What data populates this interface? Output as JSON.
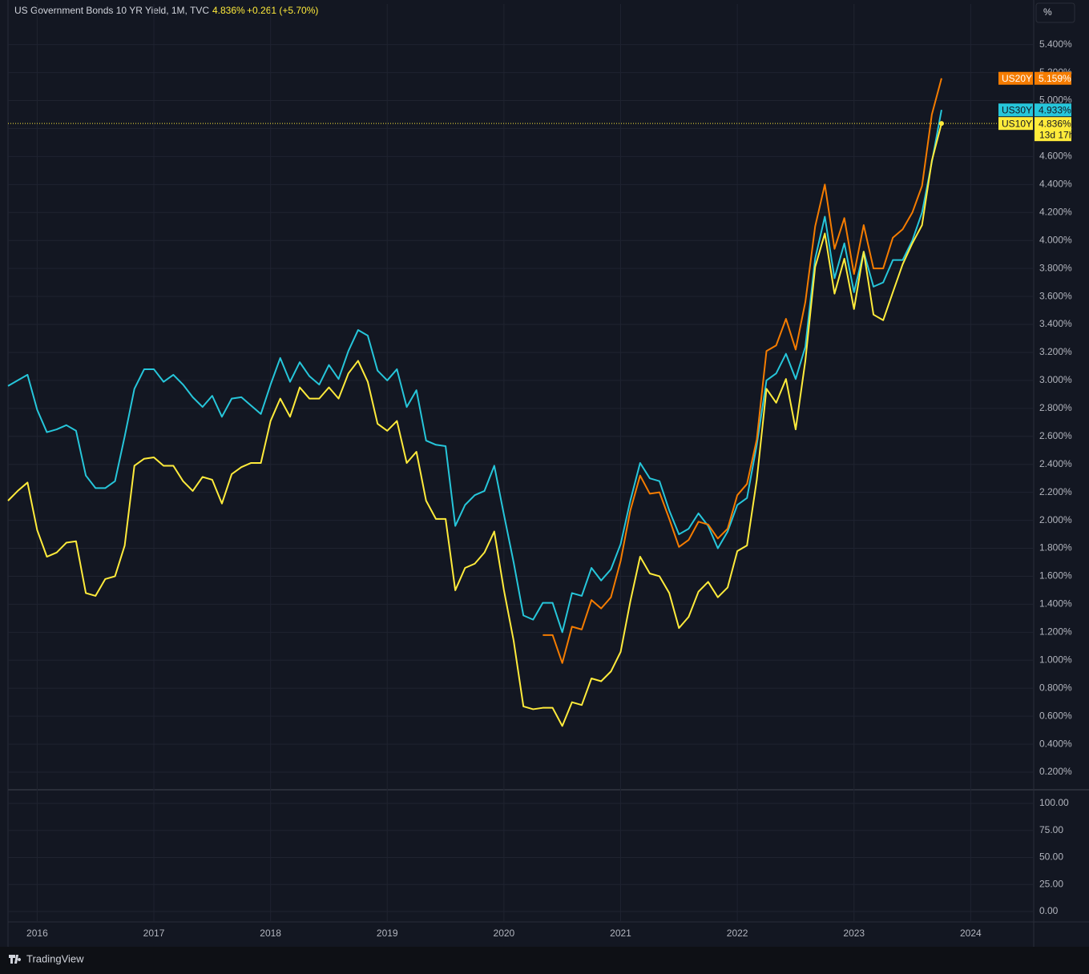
{
  "header": {
    "title": "US Government Bonds 10 YR Yield, 1M, TVC",
    "last": "4.836%",
    "change": "+0.261 (+5.70%)",
    "scale_button": "%"
  },
  "branding": "TradingView",
  "chart_data": {
    "type": "line",
    "x": [
      2015.75,
      2015.833,
      2015.917,
      2016,
      2016.083,
      2016.167,
      2016.25,
      2016.333,
      2016.417,
      2016.5,
      2016.583,
      2016.667,
      2016.75,
      2016.833,
      2016.917,
      2017,
      2017.083,
      2017.167,
      2017.25,
      2017.333,
      2017.417,
      2017.5,
      2017.583,
      2017.667,
      2017.75,
      2017.833,
      2017.917,
      2018,
      2018.083,
      2018.167,
      2018.25,
      2018.333,
      2018.417,
      2018.5,
      2018.583,
      2018.667,
      2018.75,
      2018.833,
      2018.917,
      2019,
      2019.083,
      2019.167,
      2019.25,
      2019.333,
      2019.417,
      2019.5,
      2019.583,
      2019.667,
      2019.75,
      2019.833,
      2019.917,
      2020,
      2020.083,
      2020.167,
      2020.25,
      2020.333,
      2020.417,
      2020.5,
      2020.583,
      2020.667,
      2020.75,
      2020.833,
      2020.917,
      2021,
      2021.083,
      2021.167,
      2021.25,
      2021.333,
      2021.417,
      2021.5,
      2021.583,
      2021.667,
      2021.75,
      2021.833,
      2021.917,
      2022,
      2022.083,
      2022.167,
      2022.25,
      2022.333,
      2022.417,
      2022.5,
      2022.583,
      2022.667,
      2022.75,
      2022.833,
      2022.917,
      2023,
      2023.083,
      2023.167,
      2023.25,
      2023.333,
      2023.417,
      2023.5,
      2023.583,
      2023.667,
      2023.75
    ],
    "series": [
      {
        "name": "US30Y",
        "color": "#26c6da",
        "last_value_label": "4.933%",
        "values": [
          2.96,
          3.0,
          3.04,
          2.79,
          2.63,
          2.65,
          2.68,
          2.64,
          2.32,
          2.23,
          2.23,
          2.28,
          2.6,
          2.94,
          3.08,
          3.08,
          2.99,
          3.04,
          2.97,
          2.88,
          2.81,
          2.89,
          2.74,
          2.87,
          2.88,
          2.82,
          2.76,
          2.97,
          3.16,
          2.99,
          3.13,
          3.03,
          2.97,
          3.11,
          3.01,
          3.21,
          3.36,
          3.32,
          3.07,
          3.0,
          3.08,
          2.81,
          2.93,
          2.57,
          2.54,
          2.53,
          1.96,
          2.11,
          2.18,
          2.21,
          2.39,
          2.04,
          1.7,
          1.32,
          1.29,
          1.41,
          1.41,
          1.2,
          1.48,
          1.46,
          1.66,
          1.57,
          1.65,
          1.83,
          2.14,
          2.41,
          2.3,
          2.28,
          2.07,
          1.9,
          1.94,
          2.05,
          1.96,
          1.8,
          1.92,
          2.11,
          2.16,
          2.54,
          3.0,
          3.05,
          3.19,
          3.01,
          3.24,
          3.87,
          4.17,
          3.73,
          3.98,
          3.63,
          3.92,
          3.67,
          3.7,
          3.86,
          3.86,
          4.0,
          4.2,
          4.56,
          4.933
        ]
      },
      {
        "name": "US20Y",
        "color": "#f57c00",
        "last_value_label": "5.159%",
        "values": [
          null,
          null,
          null,
          null,
          null,
          null,
          null,
          null,
          null,
          null,
          null,
          null,
          null,
          null,
          null,
          null,
          null,
          null,
          null,
          null,
          null,
          null,
          null,
          null,
          null,
          null,
          null,
          null,
          null,
          null,
          null,
          null,
          null,
          null,
          null,
          null,
          null,
          null,
          null,
          null,
          null,
          null,
          null,
          null,
          null,
          null,
          null,
          null,
          null,
          null,
          null,
          null,
          null,
          null,
          null,
          1.18,
          1.18,
          0.98,
          1.24,
          1.22,
          1.43,
          1.37,
          1.45,
          1.71,
          2.07,
          2.32,
          2.19,
          2.2,
          2.01,
          1.81,
          1.86,
          1.99,
          1.97,
          1.87,
          1.94,
          2.18,
          2.26,
          2.58,
          3.21,
          3.25,
          3.44,
          3.22,
          3.56,
          4.1,
          4.4,
          3.94,
          4.16,
          3.76,
          4.11,
          3.8,
          3.8,
          4.02,
          4.08,
          4.2,
          4.39,
          4.9,
          5.159
        ]
      },
      {
        "name": "US10Y",
        "color": "#ffeb3b",
        "last_value_label": "4.836%",
        "countdown": "13d 17h",
        "values": [
          2.14,
          2.21,
          2.27,
          1.93,
          1.74,
          1.77,
          1.84,
          1.85,
          1.48,
          1.46,
          1.58,
          1.6,
          1.82,
          2.39,
          2.44,
          2.45,
          2.39,
          2.39,
          2.28,
          2.21,
          2.31,
          2.29,
          2.12,
          2.33,
          2.38,
          2.41,
          2.41,
          2.71,
          2.87,
          2.74,
          2.95,
          2.87,
          2.87,
          2.95,
          2.87,
          3.05,
          3.14,
          2.99,
          2.69,
          2.64,
          2.71,
          2.41,
          2.49,
          2.14,
          2.01,
          2.01,
          1.5,
          1.66,
          1.69,
          1.77,
          1.92,
          1.5,
          1.14,
          0.67,
          0.65,
          0.66,
          0.66,
          0.53,
          0.7,
          0.68,
          0.87,
          0.85,
          0.92,
          1.06,
          1.42,
          1.74,
          1.62,
          1.6,
          1.48,
          1.23,
          1.31,
          1.49,
          1.56,
          1.45,
          1.52,
          1.78,
          1.82,
          2.29,
          2.94,
          2.84,
          3.01,
          2.65,
          3.14,
          3.81,
          4.05,
          3.62,
          3.87,
          3.51,
          3.92,
          3.47,
          3.43,
          3.63,
          3.83,
          3.98,
          4.11,
          4.57,
          4.836
        ]
      }
    ],
    "xlim": [
      2015.75,
      2024.54
    ],
    "xticks": [
      2016,
      2017,
      2018,
      2019,
      2020,
      2021,
      2022,
      2023,
      2024
    ],
    "ylim": [
      0.08,
      5.69
    ],
    "yticks": [
      {
        "value": 0.2,
        "label": "0.200%"
      },
      {
        "value": 0.4,
        "label": "0.400%"
      },
      {
        "value": 0.6,
        "label": "0.600%"
      },
      {
        "value": 0.8,
        "label": "0.800%"
      },
      {
        "value": 1.0,
        "label": "1.000%"
      },
      {
        "value": 1.2,
        "label": "1.200%"
      },
      {
        "value": 1.4,
        "label": "1.400%"
      },
      {
        "value": 1.6,
        "label": "1.600%"
      },
      {
        "value": 1.8,
        "label": "1.800%"
      },
      {
        "value": 2.0,
        "label": "2.000%"
      },
      {
        "value": 2.2,
        "label": "2.200%"
      },
      {
        "value": 2.4,
        "label": "2.400%"
      },
      {
        "value": 2.6,
        "label": "2.600%"
      },
      {
        "value": 2.8,
        "label": "2.800%"
      },
      {
        "value": 3.0,
        "label": "3.000%"
      },
      {
        "value": 3.2,
        "label": "3.200%"
      },
      {
        "value": 3.4,
        "label": "3.400%"
      },
      {
        "value": 3.6,
        "label": "3.600%"
      },
      {
        "value": 3.8,
        "label": "3.800%"
      },
      {
        "value": 4.0,
        "label": "4.000%"
      },
      {
        "value": 4.2,
        "label": "4.200%"
      },
      {
        "value": 4.4,
        "label": "4.400%"
      },
      {
        "value": 4.6,
        "label": "4.600%"
      },
      {
        "value": 4.8,
        "label": "4.800%"
      },
      {
        "value": 5.0,
        "label": "5.000%"
      },
      {
        "value": 5.2,
        "label": "5.200%"
      },
      {
        "value": 5.4,
        "label": "5.400%"
      }
    ],
    "grid": true
  },
  "lower_pane": {
    "ylim": [
      -8.9,
      111.9
    ],
    "yticks": [
      {
        "value": 100,
        "label": "100.00"
      },
      {
        "value": 75,
        "label": "75.00"
      },
      {
        "value": 50,
        "label": "50.00"
      },
      {
        "value": 25,
        "label": "25.00"
      },
      {
        "value": 0,
        "label": "0.00"
      }
    ]
  }
}
